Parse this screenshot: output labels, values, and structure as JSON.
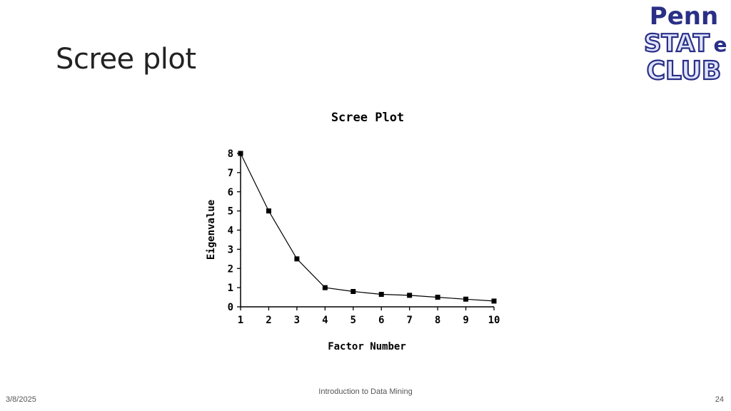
{
  "slide": {
    "title": "Scree plot",
    "footer_date": "3/8/2025",
    "footer_center": "Introduction to Data Mining",
    "page_number": "24"
  },
  "logo": {
    "line1": "Penn",
    "line2": "STAT",
    "line2_suffix": "e",
    "line3": "CLUB",
    "color_primary": "#2a2f86",
    "color_fill": "#dfe4ff"
  },
  "chart_data": {
    "type": "line",
    "title": "Scree Plot",
    "xlabel": "Factor Number",
    "ylabel": "Eigenvalue",
    "x": [
      1,
      2,
      3,
      4,
      5,
      6,
      7,
      8,
      9,
      10
    ],
    "values": [
      8.0,
      5.0,
      2.5,
      1.0,
      0.8,
      0.65,
      0.6,
      0.5,
      0.4,
      0.3
    ],
    "xlim": [
      1,
      10
    ],
    "ylim": [
      0,
      8
    ],
    "xticks": [
      "1",
      "2",
      "3",
      "4",
      "5",
      "6",
      "7",
      "8",
      "9",
      "10"
    ],
    "yticks": [
      "0",
      "1",
      "2",
      "3",
      "4",
      "5",
      "6",
      "7",
      "8"
    ],
    "grid": false,
    "legend": "none"
  }
}
